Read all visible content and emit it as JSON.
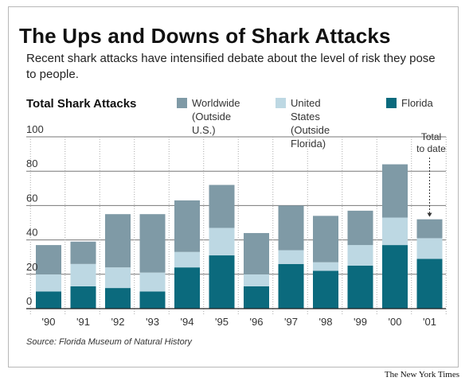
{
  "header": {
    "title": "The Ups and Downs of Shark Attacks",
    "subtitle": "Recent shark attacks have intensified debate about the level of risk they pose to people."
  },
  "chart_data": {
    "type": "bar",
    "stacked": true,
    "title": "Total Shark Attacks",
    "categories": [
      "'90",
      "'91",
      "'92",
      "'93",
      "'94",
      "'95",
      "'96",
      "'97",
      "'98",
      "'99",
      "'00",
      "'01"
    ],
    "series": [
      {
        "name": "Florida",
        "color": "#0b6a7d",
        "values": [
          10,
          13,
          12,
          10,
          24,
          31,
          13,
          26,
          22,
          25,
          37,
          29
        ]
      },
      {
        "name": "United States (Outside Florida)",
        "color": "#bdd8e3",
        "values": [
          10,
          13,
          12,
          11,
          9,
          16,
          7,
          8,
          5,
          12,
          16,
          12
        ]
      },
      {
        "name": "Worldwide (Outside U.S.)",
        "color": "#7f9aa6",
        "values": [
          17,
          13,
          31,
          34,
          30,
          25,
          24,
          26,
          27,
          20,
          31,
          11
        ]
      }
    ],
    "ylim": [
      0,
      100
    ],
    "yticks": [
      0,
      20,
      40,
      60,
      80,
      100
    ],
    "xlabel": "",
    "ylabel": "",
    "grid": true,
    "legend_position": "top",
    "annotations": [
      {
        "text": "Total to date",
        "category": "'01"
      }
    ]
  },
  "legend": [
    {
      "label": "Worldwide\n(Outside U.S.)",
      "color": "#7f9aa6"
    },
    {
      "label": "United States\n(Outside Florida)",
      "color": "#bdd8e3"
    },
    {
      "label": "Florida",
      "color": "#0b6a7d"
    }
  ],
  "footer": {
    "source": "Source: Florida Museum of Natural History",
    "credit": "The New York Times"
  }
}
